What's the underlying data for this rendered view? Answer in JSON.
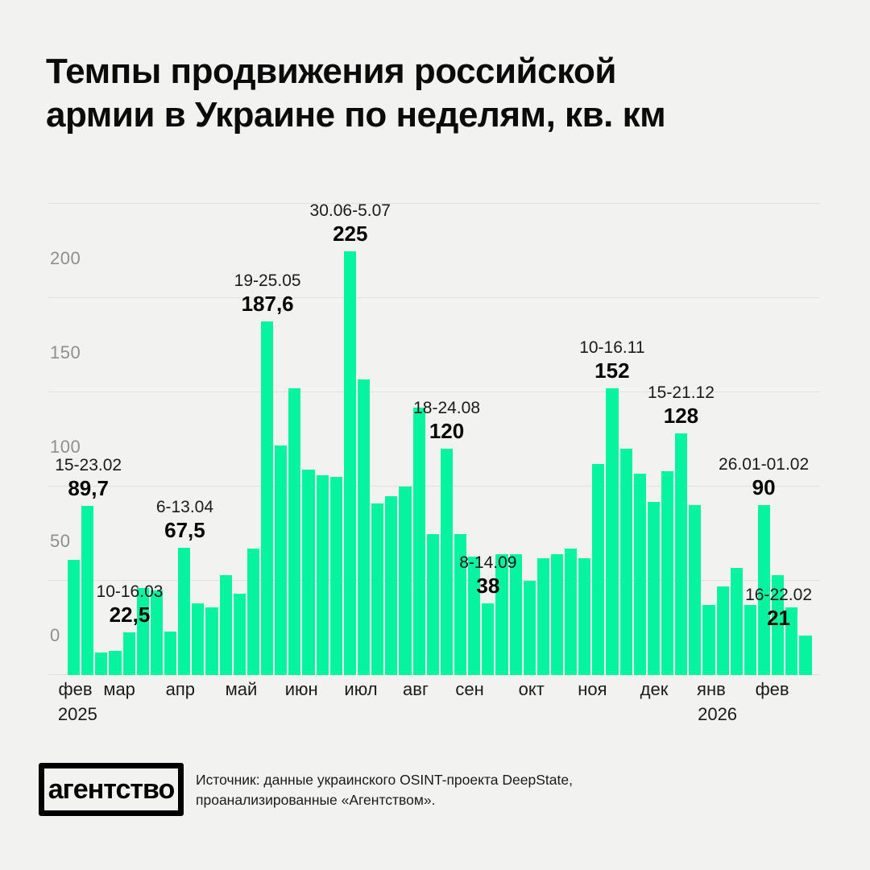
{
  "header": {
    "title_line1": "Темпы продвижения российской",
    "title_line2": "армии в Украине по неделям, кв. км"
  },
  "chart_data": {
    "type": "bar",
    "title": "Темпы продвижения российской армии в Украине по неделям, кв. км",
    "ylabel": "кв. км",
    "xlabel": "недели (фев 2025 — фев 2026)",
    "ylim": [
      0,
      250
    ],
    "yticks": [
      0,
      50,
      100,
      150,
      200
    ],
    "grid": "horizontal",
    "bar_color": "#06f3a0",
    "values": [
      61,
      89.7,
      12,
      13,
      22.5,
      46,
      45,
      23,
      67.5,
      38,
      36,
      53,
      43,
      67,
      187.6,
      122,
      152,
      109,
      106,
      105,
      225,
      157,
      91,
      95,
      100,
      142,
      75,
      120,
      75,
      63,
      38,
      64,
      64,
      50,
      62,
      64,
      67,
      62,
      112,
      152,
      120,
      107,
      92,
      108,
      128,
      90,
      37,
      47,
      57,
      37,
      90,
      53,
      36,
      21
    ],
    "months": [
      {
        "label": "фев",
        "x_pct": 3.5
      },
      {
        "label": "мар",
        "x_pct": 9.2
      },
      {
        "label": "апр",
        "x_pct": 17.1
      },
      {
        "label": "май",
        "x_pct": 25.0
      },
      {
        "label": "июн",
        "x_pct": 32.8
      },
      {
        "label": "июл",
        "x_pct": 40.5
      },
      {
        "label": "авг",
        "x_pct": 47.6
      },
      {
        "label": "сен",
        "x_pct": 54.6
      },
      {
        "label": "окт",
        "x_pct": 62.6
      },
      {
        "label": "ноя",
        "x_pct": 70.5
      },
      {
        "label": "дек",
        "x_pct": 78.5
      },
      {
        "label": "янв",
        "x_pct": 85.9
      },
      {
        "label": "фев",
        "x_pct": 93.8
      }
    ],
    "years": [
      {
        "label": "2025",
        "x_pct": 3.8
      },
      {
        "label": "2026",
        "x_pct": 86.7
      }
    ],
    "annotations": [
      {
        "index": 1,
        "date": "15-23.02",
        "value": "89,7"
      },
      {
        "index": 4,
        "date": "10-16.03",
        "value": "22,5"
      },
      {
        "index": 8,
        "date": "6-13.04",
        "value": "67,5"
      },
      {
        "index": 14,
        "date": "19-25.05",
        "value": "187,6"
      },
      {
        "index": 20,
        "date": "30.06-5.07",
        "value": "225"
      },
      {
        "index": 27,
        "date": "18-24.08",
        "value": "120"
      },
      {
        "index": 30,
        "date": "8-14.09",
        "value": "38"
      },
      {
        "index": 39,
        "date": "10-16.11",
        "value": "152"
      },
      {
        "index": 44,
        "date": "15-21.12",
        "value": "128"
      },
      {
        "index": 50,
        "date": "26.01-01.02",
        "value": "90"
      },
      {
        "index": 53,
        "date": "16-22.02",
        "value": "21",
        "align": "right"
      }
    ]
  },
  "footer": {
    "logo": "агентство",
    "source_line1": "Источник: данные украинского OSINT-проекта DeepState,",
    "source_line2": "проанализированные «Агентством»."
  }
}
